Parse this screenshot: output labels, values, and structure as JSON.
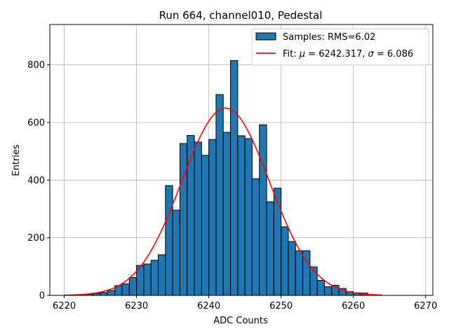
{
  "chart_data": {
    "type": "bar",
    "title": "Run 664, channel010, Pedestal",
    "xlabel": "ADC Counts",
    "ylabel": "Entries",
    "xlim": [
      6218,
      6271
    ],
    "ylim": [
      0,
      940
    ],
    "xticks": [
      6220,
      6230,
      6240,
      6250,
      6260,
      6270
    ],
    "yticks": [
      0,
      200,
      400,
      600,
      800
    ],
    "grid": true,
    "legend_position": "top-right",
    "histogram": {
      "name": "Samples: RMS=6.02",
      "color": "#1f77b4",
      "edge_color": "#000000",
      "bin_start": 6220,
      "bin_width": 1,
      "counts": [
        0,
        1,
        2,
        4,
        7,
        10,
        17,
        34,
        40,
        62,
        104,
        109,
        122,
        141,
        381,
        296,
        527,
        555,
        532,
        486,
        541,
        697,
        566,
        815,
        554,
        544,
        405,
        592,
        325,
        372,
        238,
        187,
        155,
        155,
        99,
        52,
        30,
        35,
        24,
        13,
        9,
        8,
        1,
        0
      ]
    },
    "fit": {
      "name": "Fit: μ = 6242.317, σ = 6.086",
      "label_prefix": "Fit: ",
      "mu_symbol": "μ",
      "mu_text": " = 6242.317, ",
      "sigma_symbol": "σ",
      "sigma_text": " = 6.086",
      "color": "#ff0000",
      "mu": 6242.317,
      "sigma": 6.086,
      "amplitude": 650,
      "x_range": [
        6220,
        6264
      ]
    }
  }
}
